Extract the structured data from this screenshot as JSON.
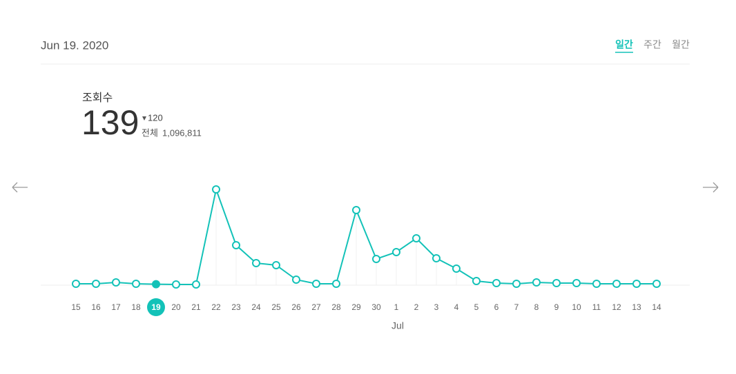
{
  "header": {
    "date": "Jun 19. 2020",
    "tabs": [
      "일간",
      "주간",
      "월간"
    ],
    "active_tab": 0
  },
  "stats": {
    "label": "조회수",
    "value": "139",
    "change": "120",
    "total_label": "전체",
    "total_value": "1,096,811"
  },
  "chart_data": {
    "type": "line",
    "color": "#13c2b8",
    "categories": [
      "15",
      "16",
      "17",
      "18",
      "19",
      "20",
      "21",
      "22",
      "23",
      "24",
      "25",
      "26",
      "27",
      "28",
      "29",
      "30",
      "1",
      "2",
      "3",
      "4",
      "5",
      "6",
      "7",
      "8",
      "9",
      "10",
      "11",
      "12",
      "13",
      "14"
    ],
    "values": [
      200,
      200,
      400,
      200,
      139,
      100,
      100,
      13900,
      5800,
      3200,
      2900,
      800,
      200,
      200,
      10900,
      3800,
      4800,
      6800,
      3900,
      2400,
      600,
      300,
      200,
      400,
      300,
      300,
      200,
      200,
      200,
      200
    ],
    "selected_index": 4,
    "month_label": "Jul",
    "ylim": [
      0,
      14000
    ]
  }
}
